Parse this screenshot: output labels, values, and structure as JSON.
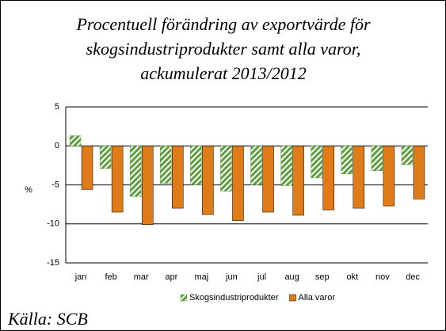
{
  "chart_data": {
    "type": "bar",
    "title": [
      "Procentuell förändring av exportvärde för",
      "skogsindustriprodukter samt alla varor,",
      "ackumulerat 2013/2012"
    ],
    "y_label": "%",
    "source": "Källa: SCB",
    "categories": [
      "jan",
      "feb",
      "mar",
      "apr",
      "maj",
      "jun",
      "jul",
      "aug",
      "sep",
      "okt",
      "nov",
      "dec"
    ],
    "series": [
      {
        "name": "Skogsindustriprodukter",
        "color": "#5f9e3f",
        "hatched": true,
        "values": [
          1.3,
          -2.9,
          -6.5,
          -4.8,
          -5.0,
          -5.8,
          -5.0,
          -5.1,
          -4.1,
          -3.6,
          -3.2,
          -2.4
        ]
      },
      {
        "name": "Alla varor",
        "color": "#e07b1a",
        "hatched": false,
        "values": [
          -5.6,
          -8.5,
          -10.1,
          -8.0,
          -8.8,
          -9.6,
          -8.5,
          -8.9,
          -8.2,
          -8.0,
          -7.7,
          -6.8
        ]
      }
    ],
    "ylim": [
      -15,
      5
    ],
    "yticks": [
      -15,
      -10,
      -5,
      0,
      5
    ],
    "grid": true,
    "legend": "bottom"
  }
}
